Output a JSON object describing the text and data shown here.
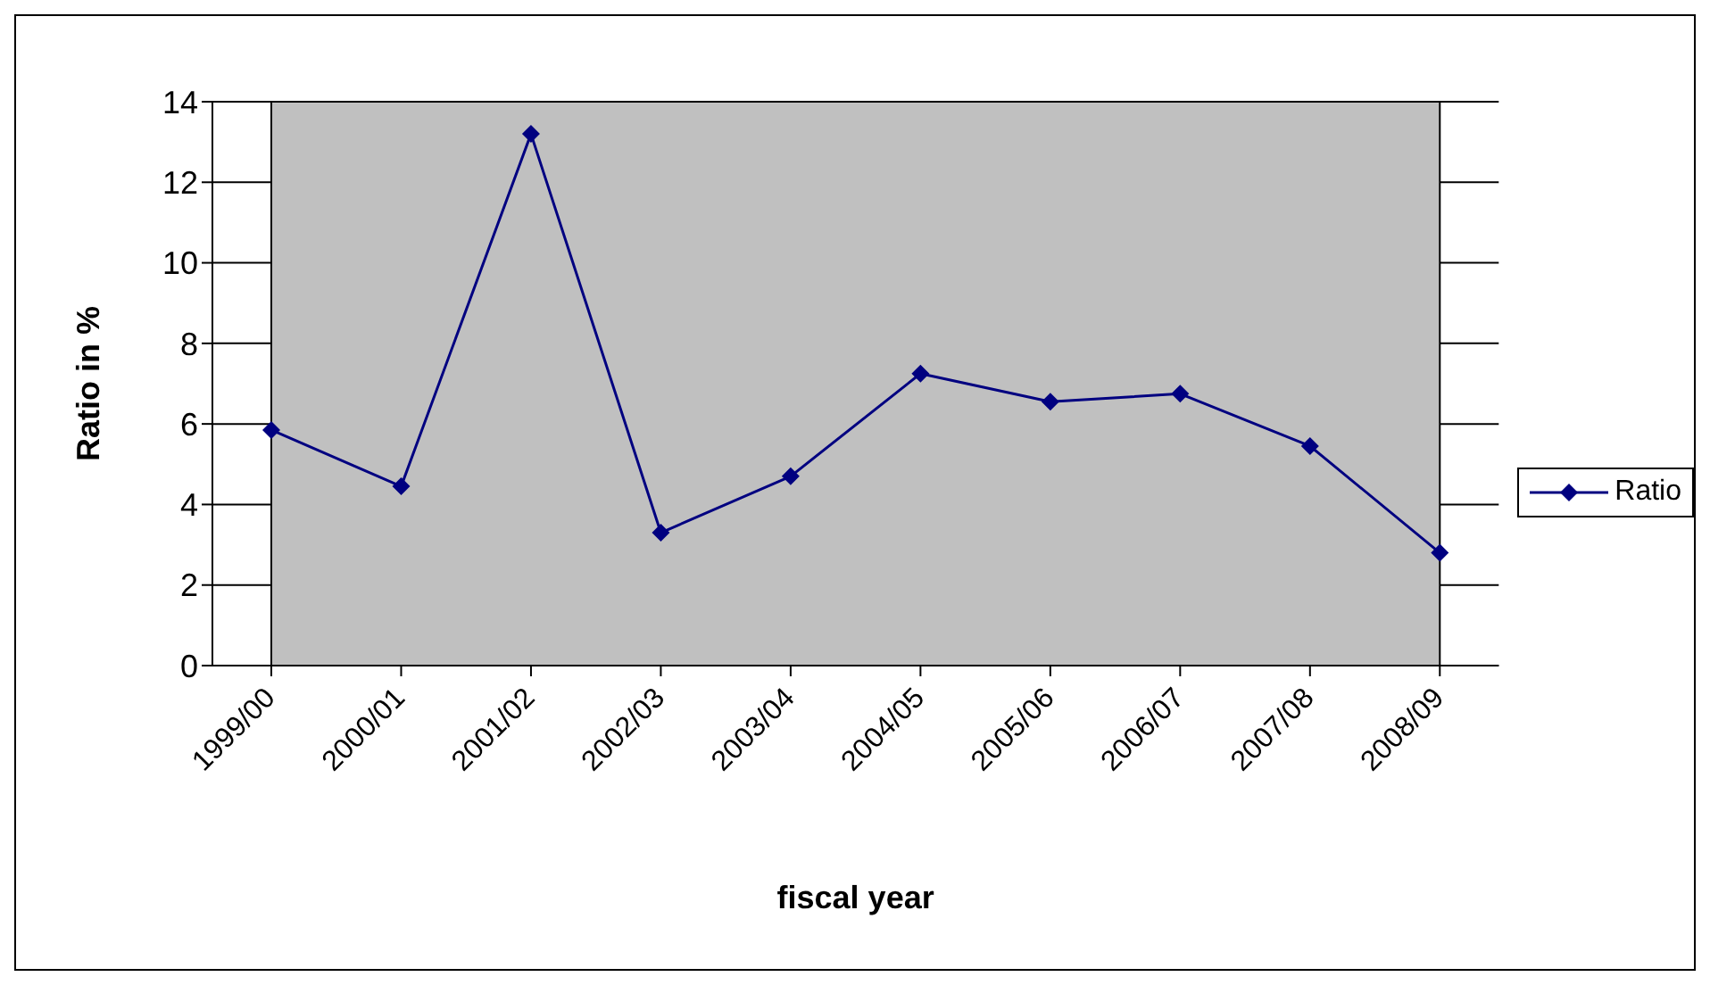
{
  "chart_data": {
    "type": "line",
    "xlabel": "fiscal year",
    "ylabel": "Ratio in %",
    "categories": [
      "1999/00",
      "2000/01",
      "2001/02",
      "2002/03",
      "2003/04",
      "2004/05",
      "2005/06",
      "2006/07",
      "2007/08",
      "2008/09"
    ],
    "series": [
      {
        "name": "Ratio",
        "color": "#000080",
        "values": [
          5.85,
          4.45,
          13.2,
          3.3,
          4.7,
          7.25,
          6.55,
          6.75,
          5.45,
          2.8
        ]
      }
    ],
    "ylim": [
      0,
      14
    ],
    "yticks": [
      0,
      2,
      4,
      6,
      8,
      10,
      12,
      14
    ],
    "grid": "y",
    "legend": "right",
    "marker": "diamond",
    "line_style": "solid"
  }
}
